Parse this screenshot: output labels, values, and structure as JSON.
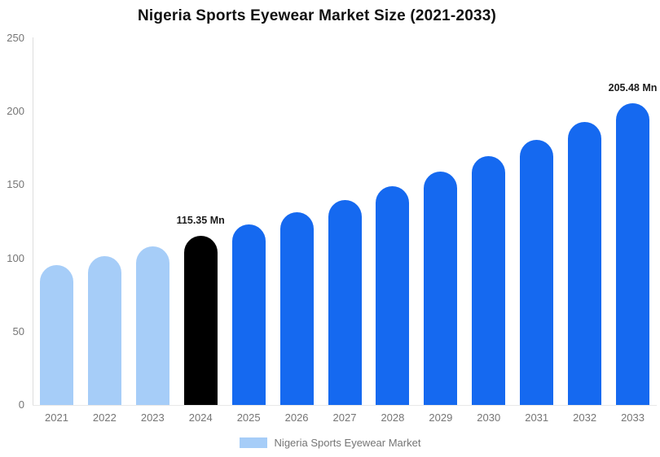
{
  "chart_data": {
    "type": "bar",
    "title": "Nigeria Sports Eyewear Market Size (2021-2033)",
    "categories": [
      "2021",
      "2022",
      "2023",
      "2024",
      "2025",
      "2026",
      "2027",
      "2028",
      "2029",
      "2030",
      "2031",
      "2032",
      "2033"
    ],
    "series": [
      {
        "name": "Nigeria Sports Eyewear Market",
        "values": [
          95.13,
          101.44,
          108.18,
          115.35,
          123.0,
          131.15,
          139.85,
          149.11,
          159.0,
          169.53,
          180.76,
          192.73,
          205.48
        ]
      }
    ],
    "bar_colors": [
      "#A6CDF8",
      "#A6CDF8",
      "#A6CDF8",
      "#000000",
      "#1569F0",
      "#1569F0",
      "#1569F0",
      "#1569F0",
      "#1569F0",
      "#1569F0",
      "#1569F0",
      "#1569F0",
      "#1569F0"
    ],
    "annotations": [
      {
        "category": "2024",
        "text": "115.35 Mn"
      },
      {
        "category": "2033",
        "text": "205.48 Mn"
      }
    ],
    "xlabel": "",
    "ylabel": "",
    "ylim": [
      0,
      250
    ],
    "yticks": [
      0,
      50,
      100,
      150,
      200,
      250
    ],
    "grid": false,
    "legend": {
      "position": "bottom",
      "items": [
        {
          "label": "Nigeria Sports Eyewear Market",
          "color": "#A6CDF8"
        }
      ]
    }
  },
  "colors": {
    "background": "#ffffff",
    "title": "#111111",
    "axis_label": "#757575",
    "axis_line": "#dddddd",
    "baseline": "#e8e8e8",
    "annotation": "#1c1c1c"
  }
}
